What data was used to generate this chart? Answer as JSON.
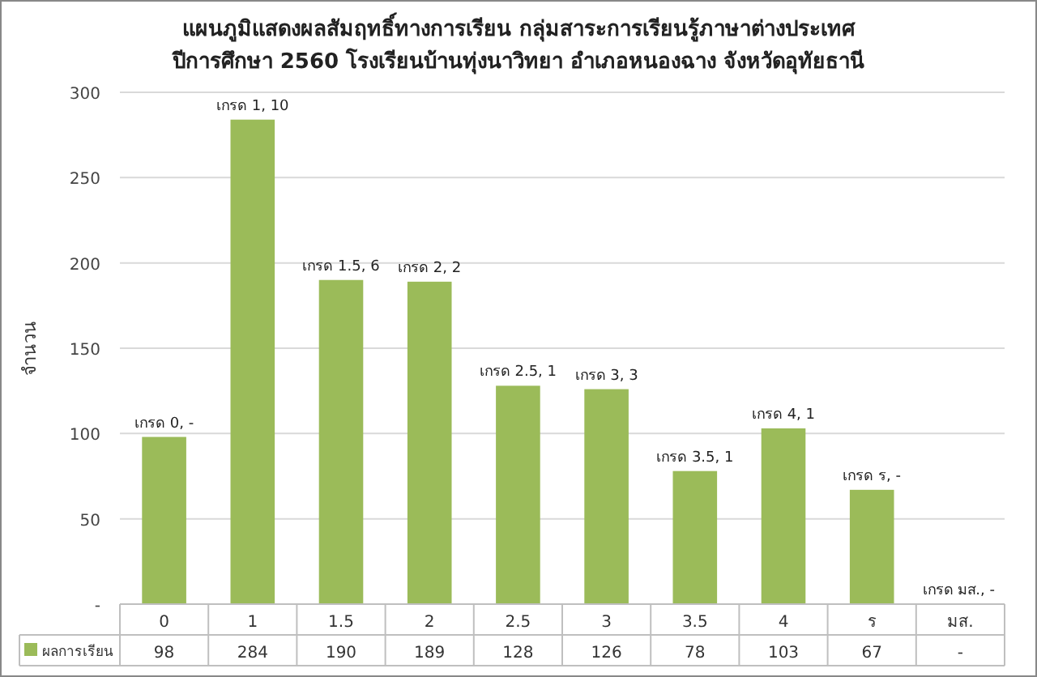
{
  "chart_data": {
    "type": "bar",
    "title": "แผนภูมิแสดงผลสัมฤทธิ์ทางการเรียน กลุ่มสาระการเรียนรู้ภาษาต่างประเทศ\nปีการศึกษา 2560 โรงเรียนบ้านทุ่งนาวิทยา อำเภอหนองฉาง จังหวัดอุทัยธานี",
    "ylabel": "จำนวน",
    "categories": [
      "0",
      "1",
      "1.5",
      "2",
      "2.5",
      "3",
      "3.5",
      "4",
      "ร",
      "มส."
    ],
    "series": [
      {
        "name": "ผลการเรียน",
        "color": "#9bbb59",
        "values": [
          98,
          284,
          190,
          189,
          128,
          126,
          78,
          103,
          67,
          null
        ],
        "value_labels": [
          "98",
          "284",
          "190",
          "189",
          "128",
          "126",
          "78",
          "103",
          "67",
          "-"
        ]
      }
    ],
    "annotations": [
      {
        "text": "เกรด 0,  -",
        "x": "0",
        "y": 98
      },
      {
        "text": "เกรด 1,  10",
        "x": "1",
        "y": 284
      },
      {
        "text": "เกรด 1.5,  6",
        "x": "1.5",
        "y": 190
      },
      {
        "text": "เกรด 2,  2",
        "x": "2",
        "y": 189
      },
      {
        "text": "เกรด 2.5,  1",
        "x": "2.5",
        "y": 128
      },
      {
        "text": "เกรด 3,  3",
        "x": "3",
        "y": 126
      },
      {
        "text": "เกรด 3.5,  1",
        "x": "3.5",
        "y": 78
      },
      {
        "text": "เกรด 4,  1",
        "x": "4",
        "y": 103
      },
      {
        "text": "เกรด ร,  -",
        "x": "ร",
        "y": 67
      },
      "เกรด มส.,  -"
    ],
    "ylim": [
      0,
      300
    ],
    "yticks": [
      {
        "value": 0,
        "label": "-"
      },
      50,
      100,
      150,
      200,
      250,
      300
    ],
    "grid": "y",
    "legend": "bottom left",
    "data_labels": true
  }
}
